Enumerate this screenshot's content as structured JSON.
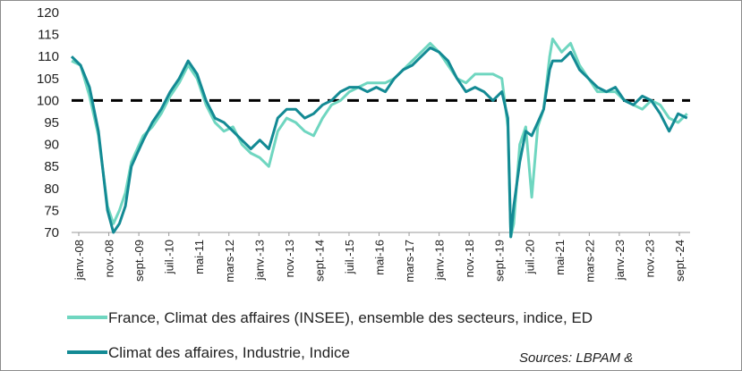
{
  "chart_data": {
    "type": "line",
    "title": "",
    "xlabel": "",
    "ylabel": "",
    "ylim": [
      70,
      120
    ],
    "yticks": [
      70,
      75,
      80,
      85,
      90,
      95,
      100,
      105,
      110,
      115,
      120
    ],
    "xticks": [
      "janv.-08",
      "nov.-08",
      "sept.-09",
      "juil.-10",
      "mai-11",
      "mars-12",
      "janv.-13",
      "nov.-13",
      "sept.-14",
      "juil.-15",
      "mai-16",
      "mars-17",
      "janv.-18",
      "nov.-18",
      "sept.-19",
      "juil.-20",
      "mai-21",
      "mars-22",
      "janv.-23",
      "nov.-23",
      "sept.-24"
    ],
    "reference_line": {
      "value": 100,
      "style": "dashed"
    },
    "grid": false,
    "legend_position": "bottom",
    "series": [
      {
        "name": "France, Climat des affaires (INSEE), ensemble des secteurs, indice, ED",
        "color": "#6fd6c0",
        "points": [
          [
            "2008-01",
            109
          ],
          [
            "2008-04",
            108
          ],
          [
            "2008-07",
            101
          ],
          [
            "2008-10",
            92
          ],
          [
            "2009-01",
            76
          ],
          [
            "2009-03",
            72
          ],
          [
            "2009-05",
            75
          ],
          [
            "2009-07",
            79
          ],
          [
            "2009-09",
            86
          ],
          [
            "2009-11",
            89
          ],
          [
            "2010-01",
            92
          ],
          [
            "2010-04",
            94
          ],
          [
            "2010-07",
            97
          ],
          [
            "2010-10",
            101
          ],
          [
            "2011-01",
            104
          ],
          [
            "2011-04",
            108
          ],
          [
            "2011-07",
            105
          ],
          [
            "2011-10",
            99
          ],
          [
            "2012-01",
            95
          ],
          [
            "2012-04",
            93
          ],
          [
            "2012-07",
            94
          ],
          [
            "2012-10",
            90
          ],
          [
            "2013-01",
            88
          ],
          [
            "2013-04",
            87
          ],
          [
            "2013-07",
            85
          ],
          [
            "2013-10",
            93
          ],
          [
            "2014-01",
            96
          ],
          [
            "2014-04",
            95
          ],
          [
            "2014-07",
            93
          ],
          [
            "2014-10",
            92
          ],
          [
            "2015-01",
            96
          ],
          [
            "2015-04",
            99
          ],
          [
            "2015-07",
            100
          ],
          [
            "2015-10",
            102
          ],
          [
            "2016-01",
            103
          ],
          [
            "2016-04",
            104
          ],
          [
            "2016-07",
            104
          ],
          [
            "2016-10",
            104
          ],
          [
            "2017-01",
            105
          ],
          [
            "2017-04",
            107
          ],
          [
            "2017-07",
            109
          ],
          [
            "2017-10",
            111
          ],
          [
            "2018-01",
            113
          ],
          [
            "2018-04",
            111
          ],
          [
            "2018-07",
            108
          ],
          [
            "2018-10",
            105
          ],
          [
            "2019-01",
            104
          ],
          [
            "2019-04",
            106
          ],
          [
            "2019-07",
            106
          ],
          [
            "2019-10",
            106
          ],
          [
            "2020-01",
            105
          ],
          [
            "2020-03",
            94
          ],
          [
            "2020-04",
            69
          ],
          [
            "2020-05",
            72
          ],
          [
            "2020-07",
            90
          ],
          [
            "2020-09",
            94
          ],
          [
            "2020-11",
            78
          ],
          [
            "2021-01",
            94
          ],
          [
            "2021-03",
            98
          ],
          [
            "2021-05",
            110
          ],
          [
            "2021-06",
            114
          ],
          [
            "2021-09",
            111
          ],
          [
            "2021-12",
            113
          ],
          [
            "2022-03",
            108
          ],
          [
            "2022-06",
            105
          ],
          [
            "2022-09",
            102
          ],
          [
            "2022-12",
            102
          ],
          [
            "2023-03",
            102
          ],
          [
            "2023-06",
            100
          ],
          [
            "2023-09",
            99
          ],
          [
            "2023-12",
            98
          ],
          [
            "2024-03",
            100
          ],
          [
            "2024-06",
            99
          ],
          [
            "2024-09",
            96
          ],
          [
            "2024-12",
            95
          ],
          [
            "2025-03",
            97
          ]
        ]
      },
      {
        "name": "Climat des affaires, Industrie, Indice",
        "color": "#138a94",
        "points": [
          [
            "2008-01",
            110
          ],
          [
            "2008-04",
            108
          ],
          [
            "2008-07",
            103
          ],
          [
            "2008-10",
            93
          ],
          [
            "2009-01",
            75
          ],
          [
            "2009-03",
            70
          ],
          [
            "2009-05",
            72
          ],
          [
            "2009-07",
            76
          ],
          [
            "2009-09",
            85
          ],
          [
            "2009-11",
            88
          ],
          [
            "2010-01",
            91
          ],
          [
            "2010-04",
            95
          ],
          [
            "2010-07",
            98
          ],
          [
            "2010-10",
            102
          ],
          [
            "2011-01",
            105
          ],
          [
            "2011-04",
            109
          ],
          [
            "2011-07",
            106
          ],
          [
            "2011-10",
            100
          ],
          [
            "2012-01",
            96
          ],
          [
            "2012-04",
            95
          ],
          [
            "2012-07",
            93
          ],
          [
            "2012-10",
            91
          ],
          [
            "2013-01",
            89
          ],
          [
            "2013-04",
            91
          ],
          [
            "2013-07",
            89
          ],
          [
            "2013-10",
            96
          ],
          [
            "2014-01",
            98
          ],
          [
            "2014-04",
            98
          ],
          [
            "2014-07",
            96
          ],
          [
            "2014-10",
            97
          ],
          [
            "2015-01",
            99
          ],
          [
            "2015-04",
            100
          ],
          [
            "2015-07",
            102
          ],
          [
            "2015-10",
            103
          ],
          [
            "2016-01",
            103
          ],
          [
            "2016-04",
            102
          ],
          [
            "2016-07",
            103
          ],
          [
            "2016-10",
            102
          ],
          [
            "2017-01",
            105
          ],
          [
            "2017-04",
            107
          ],
          [
            "2017-07",
            108
          ],
          [
            "2017-10",
            110
          ],
          [
            "2018-01",
            112
          ],
          [
            "2018-04",
            111
          ],
          [
            "2018-07",
            109
          ],
          [
            "2018-10",
            105
          ],
          [
            "2019-01",
            102
          ],
          [
            "2019-04",
            103
          ],
          [
            "2019-07",
            102
          ],
          [
            "2019-10",
            100
          ],
          [
            "2020-01",
            102
          ],
          [
            "2020-03",
            96
          ],
          [
            "2020-04",
            69
          ],
          [
            "2020-05",
            76
          ],
          [
            "2020-07",
            86
          ],
          [
            "2020-09",
            93
          ],
          [
            "2020-11",
            92
          ],
          [
            "2021-01",
            95
          ],
          [
            "2021-03",
            98
          ],
          [
            "2021-05",
            107
          ],
          [
            "2021-06",
            109
          ],
          [
            "2021-09",
            109
          ],
          [
            "2021-12",
            111
          ],
          [
            "2022-03",
            107
          ],
          [
            "2022-06",
            105
          ],
          [
            "2022-09",
            103
          ],
          [
            "2022-12",
            102
          ],
          [
            "2023-03",
            103
          ],
          [
            "2023-06",
            100
          ],
          [
            "2023-09",
            99
          ],
          [
            "2023-12",
            101
          ],
          [
            "2024-03",
            100
          ],
          [
            "2024-06",
            97
          ],
          [
            "2024-09",
            93
          ],
          [
            "2024-12",
            97
          ],
          [
            "2025-03",
            96
          ]
        ]
      }
    ]
  },
  "source": "Sources: LBPAM &"
}
